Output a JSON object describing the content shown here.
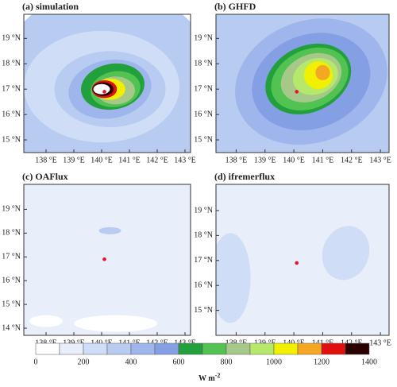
{
  "chart_data": [
    {
      "type": "map",
      "title": "(a) simulation",
      "xlim": [
        137.2,
        143.2
      ],
      "ylim": [
        14.5,
        19.95
      ],
      "xticks": [
        {
          "value": 138,
          "label": "138 °E"
        },
        {
          "value": 139,
          "label": "139 °E"
        },
        {
          "value": 140,
          "label": "140 °E"
        },
        {
          "value": 141,
          "label": "141 °E"
        },
        {
          "value": 142,
          "label": "142 °E"
        },
        {
          "value": 143,
          "label": "143 °E"
        }
      ],
      "yticks": [
        {
          "value": 15,
          "label": "15 °N"
        },
        {
          "value": 16,
          "label": "16 °N"
        },
        {
          "value": 17,
          "label": "17 °N"
        },
        {
          "value": 18,
          "label": "18 °N"
        },
        {
          "value": 19,
          "label": "19 °N"
        }
      ],
      "marker": {
        "x": 140.1,
        "y": 16.9,
        "color": "#e8102a"
      }
    },
    {
      "type": "map",
      "title": "(b) GHFD",
      "xlim": [
        137.3,
        143.3
      ],
      "ylim": [
        14.5,
        19.95
      ],
      "xticks": [
        {
          "value": 138,
          "label": "138 °E"
        },
        {
          "value": 139,
          "label": "139 °E"
        },
        {
          "value": 140,
          "label": "140 °E"
        },
        {
          "value": 141,
          "label": "141 °E"
        },
        {
          "value": 142,
          "label": "142 °E"
        },
        {
          "value": 143,
          "label": "143 °E"
        }
      ],
      "yticks": [
        {
          "value": 15,
          "label": "15 °N"
        },
        {
          "value": 16,
          "label": "16 °N"
        },
        {
          "value": 17,
          "label": "17 °N"
        },
        {
          "value": 18,
          "label": "18 °N"
        },
        {
          "value": 19,
          "label": "19 °N"
        }
      ],
      "marker": {
        "x": 140.1,
        "y": 16.9,
        "color": "#e8102a"
      }
    },
    {
      "type": "map",
      "title": "(c) OAFlux",
      "xlim": [
        137.2,
        143.2
      ],
      "ylim": [
        13.7,
        20.05
      ],
      "xticks": [
        {
          "value": 138,
          "label": "138 °E"
        },
        {
          "value": 139,
          "label": "139 °E"
        },
        {
          "value": 140,
          "label": "140 °E"
        },
        {
          "value": 141,
          "label": "141 °E"
        },
        {
          "value": 142,
          "label": "142 °E"
        },
        {
          "value": 143,
          "label": "143 °E"
        }
      ],
      "yticks": [
        {
          "value": 14,
          "label": "14 °N"
        },
        {
          "value": 15,
          "label": "15 °N"
        },
        {
          "value": 16,
          "label": "16 °N"
        },
        {
          "value": 17,
          "label": "17 °N"
        },
        {
          "value": 18,
          "label": "18 °N"
        },
        {
          "value": 19,
          "label": "19 °N"
        }
      ],
      "marker": {
        "x": 140.1,
        "y": 16.9,
        "color": "#e8102a"
      }
    },
    {
      "type": "map",
      "title": "(d) ifremerflux",
      "xlim": [
        137.3,
        143.3
      ],
      "ylim": [
        14.0,
        20.05
      ],
      "xticks": [
        {
          "value": 138,
          "label": "138 °E"
        },
        {
          "value": 139,
          "label": "139 °E"
        },
        {
          "value": 140,
          "label": "140 °E"
        },
        {
          "value": 141,
          "label": "141 °E"
        },
        {
          "value": 142,
          "label": "142 °E"
        },
        {
          "value": 143,
          "label": "143 °E"
        }
      ],
      "yticks": [
        {
          "value": 15,
          "label": "15 °N"
        },
        {
          "value": 16,
          "label": "16 °N"
        },
        {
          "value": 17,
          "label": "17 °N"
        },
        {
          "value": 18,
          "label": "18 °N"
        },
        {
          "value": 19,
          "label": "19 °N"
        }
      ],
      "marker": {
        "x": 140.1,
        "y": 16.9,
        "color": "#e8102a"
      }
    },
    {
      "type": "colorbar",
      "label": "W m",
      "label_exponent": "-2",
      "bounds": [
        0,
        100,
        200,
        300,
        400,
        500,
        600,
        700,
        800,
        900,
        1000,
        1100,
        1200,
        1300,
        1400
      ],
      "colors": [
        "#ffffff",
        "#e8eefa",
        "#d0ddf6",
        "#b8cbf1",
        "#9fb6ec",
        "#859fe4",
        "#22a03c",
        "#52c252",
        "#a6c98a",
        "#b6e86a",
        "#f0f000",
        "#f5a623",
        "#e01010",
        "#2a0000"
      ],
      "ticks": [
        0,
        200,
        400,
        600,
        800,
        1000,
        1200,
        1400
      ]
    }
  ]
}
